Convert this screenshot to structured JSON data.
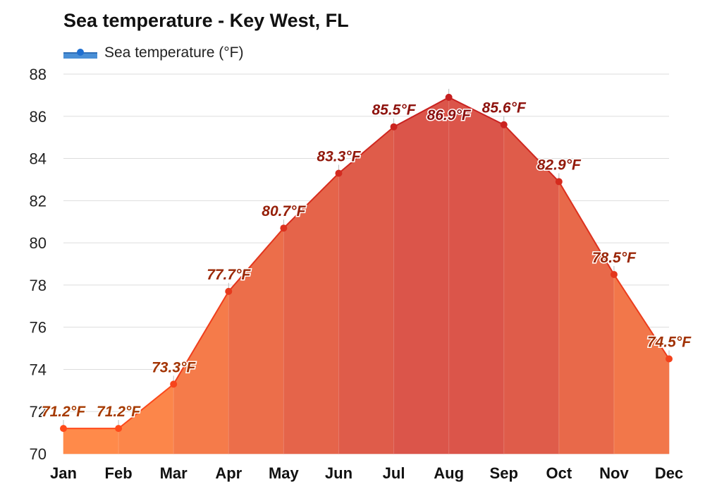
{
  "title": "Sea temperature - Key West, FL",
  "legend": {
    "label": "Sea temperature (°F)"
  },
  "colors": {
    "grid": "#dddddd",
    "area_cool": "#ff8a4a",
    "area_hot": "#d9534a",
    "line_cool": "#ff4a1a",
    "line_hot": "#c62020",
    "label_cool": "#a63a00",
    "label_hot": "#8c0f0f",
    "legend_swatch": "#4a8fd6"
  },
  "chart_data": {
    "type": "area",
    "title": "Sea temperature - Key West, FL",
    "categories": [
      "Jan",
      "Feb",
      "Mar",
      "Apr",
      "May",
      "Jun",
      "Jul",
      "Aug",
      "Sep",
      "Oct",
      "Nov",
      "Dec"
    ],
    "series": [
      {
        "name": "Sea temperature (°F)",
        "values": [
          71.2,
          71.2,
          73.3,
          77.7,
          80.7,
          83.3,
          85.5,
          86.9,
          85.6,
          82.9,
          78.5,
          74.5
        ],
        "labels": [
          "71.2°F",
          "71.2°F",
          "73.3°F",
          "77.7°F",
          "80.7°F",
          "83.3°F",
          "85.5°F",
          "86.9°F",
          "85.6°F",
          "82.9°F",
          "78.5°F",
          "74.5°F"
        ]
      }
    ],
    "yticks": [
      "70",
      "72",
      "74",
      "76",
      "78",
      "80",
      "82",
      "84",
      "86",
      "88"
    ],
    "ylim": [
      70,
      88
    ],
    "grid": true,
    "legend_position": "top-left"
  }
}
